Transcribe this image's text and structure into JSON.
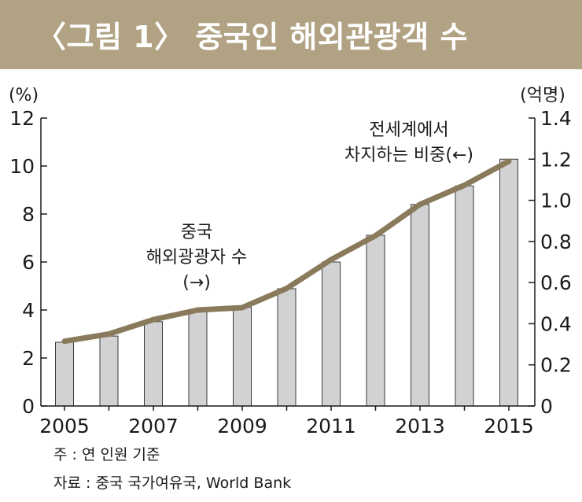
{
  "title": "〈그림 1〉 중국인 해외관광객 수",
  "notes": {
    "note": "주 : 연 인원 기준",
    "source": "자료 : 중국 국가여유국, World Bank"
  },
  "chart_data": {
    "type": "bar",
    "categories": [
      "2005",
      "2006",
      "2007",
      "2008",
      "2009",
      "2010",
      "2011",
      "2012",
      "2013",
      "2014",
      "2015"
    ],
    "xtick_labels": [
      "2005",
      "",
      "2007",
      "",
      "2009",
      "",
      "2011",
      "",
      "2013",
      "",
      "2015"
    ],
    "series": [
      {
        "name": "중국 해외광광자 수 (→)",
        "type": "bar",
        "axis": "right",
        "values": [
          0.31,
          0.34,
          0.41,
          0.46,
          0.48,
          0.57,
          0.7,
          0.83,
          0.98,
          1.07,
          1.2
        ]
      },
      {
        "name": "전세계에서 차지하는 비중(←)",
        "type": "line",
        "axis": "left",
        "values": [
          2.7,
          3.0,
          3.6,
          4.0,
          4.1,
          4.9,
          6.1,
          7.1,
          8.4,
          9.2,
          10.2
        ]
      }
    ],
    "annotations": {
      "bar_label": [
        "중국",
        "해외광광자 수",
        "(→)"
      ],
      "line_label": [
        "전세계에서",
        "차지하는 비중(←)"
      ]
    },
    "left_axis": {
      "unit": "(%)",
      "ylim": [
        0,
        12
      ],
      "ticks": [
        "0",
        "2",
        "4",
        "6",
        "8",
        "10",
        "12"
      ]
    },
    "right_axis": {
      "unit": "(억명)",
      "ylim": [
        0,
        1.4
      ],
      "ticks": [
        "0",
        "0.2",
        "0.4",
        "0.6",
        "0.8",
        "1.0",
        "1.2",
        "1.4"
      ]
    },
    "grid": false,
    "colors": {
      "bar_fill": "#d2d2d4",
      "bar_stroke": "#3a3a3a",
      "line": "#8a7a5c",
      "title_bg": "#b0a283"
    }
  }
}
